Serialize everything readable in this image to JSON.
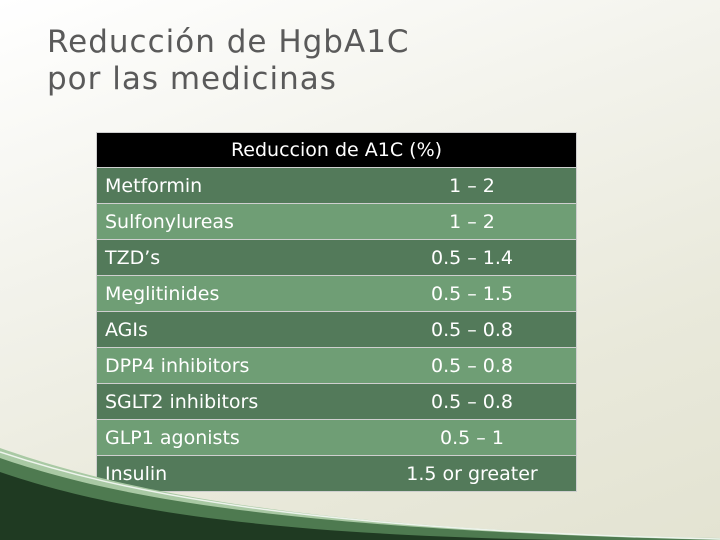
{
  "slide": {
    "title_line1": "Reducción de HgbA1C",
    "title_line2": "por las medicinas"
  },
  "table": {
    "header": "Reduccion de A1C (%)",
    "rows": [
      {
        "drug": "Metformin",
        "reduction": "1 – 2"
      },
      {
        "drug": "Sulfonylureas",
        "reduction": "1 – 2"
      },
      {
        "drug": "TZD’s",
        "reduction": "0.5 – 1.4"
      },
      {
        "drug": "Meglitinides",
        "reduction": "0.5 – 1.5"
      },
      {
        "drug": "AGIs",
        "reduction": "0.5 – 0.8"
      },
      {
        "drug": "DPP4 inhibitors",
        "reduction": "0.5 – 0.8"
      },
      {
        "drug": "SGLT2 inhibitors",
        "reduction": "0.5 – 0.8"
      },
      {
        "drug": "GLP1 agonists",
        "reduction": "0.5 – 1"
      },
      {
        "drug": "Insulin",
        "reduction": "1.5 or greater"
      }
    ]
  },
  "colors": {
    "row_dark": "#537a5a",
    "row_light": "#6f9e75",
    "header_bg": "#000000",
    "title_text": "#5a5a5a",
    "swoosh_dark": "#1f3a22",
    "swoosh_mid": "#4e7a50",
    "swoosh_light": "#a9c9a4"
  }
}
